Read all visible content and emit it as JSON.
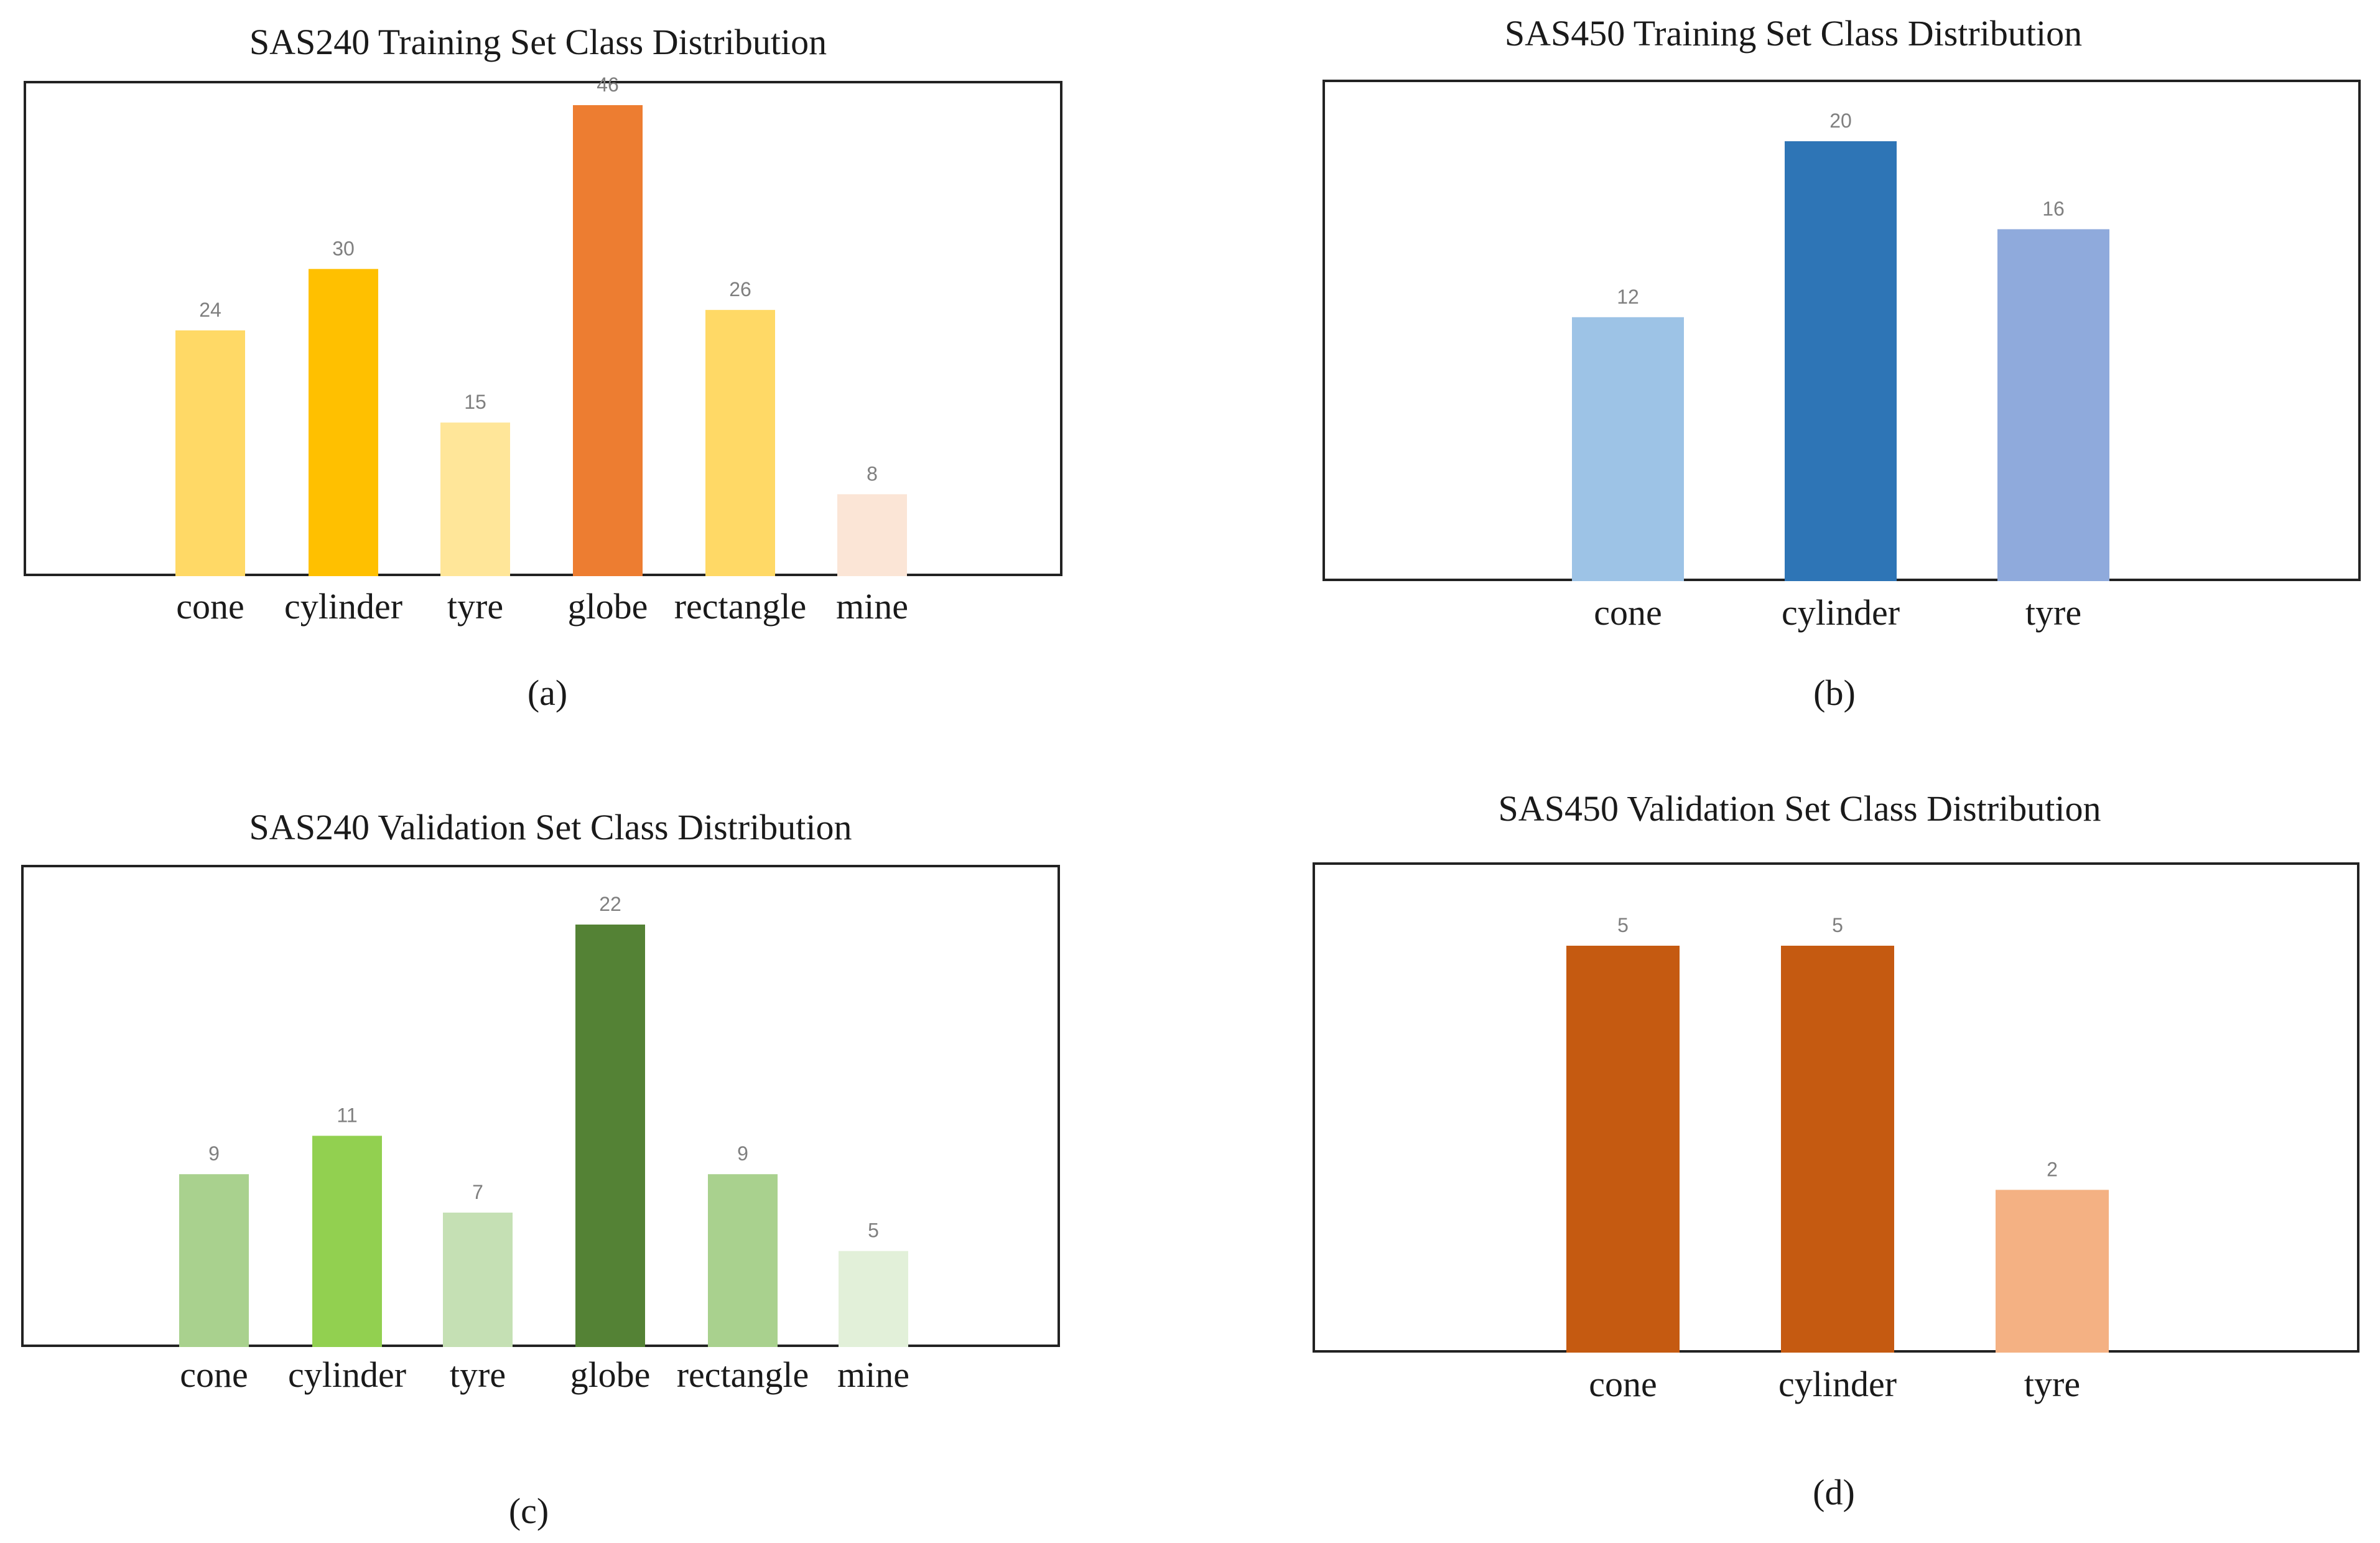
{
  "chart_data": [
    {
      "id": "a",
      "type": "bar",
      "title": "SAS240 Training Set Class Distribution",
      "caption": "(a)",
      "categories": [
        "cone",
        "cylinder",
        "tyre",
        "globe",
        "rectangle",
        "mine"
      ],
      "values": [
        24,
        30,
        15,
        46,
        26,
        8
      ],
      "colors": [
        "#FFD966",
        "#FFC000",
        "#FFE699",
        "#ED7D31",
        "#FFD966",
        "#FBE5D6"
      ],
      "xlabel": "",
      "ylabel": "",
      "ylim": [
        0,
        50
      ],
      "grid": false
    },
    {
      "id": "b",
      "type": "bar",
      "title": "SAS450 Training Set Class Distribution",
      "caption": "(b)",
      "categories": [
        "cone",
        "cylinder",
        "tyre"
      ],
      "values": [
        12,
        20,
        16
      ],
      "colors": [
        "#9DC3E6",
        "#2E75B6",
        "#8FAADC"
      ],
      "xlabel": "",
      "ylabel": "",
      "ylim": [
        0,
        22
      ],
      "grid": false
    },
    {
      "id": "c",
      "type": "bar",
      "title": "SAS240 Validation Set Class Distribution",
      "caption": "(c)",
      "categories": [
        "cone",
        "cylinder",
        "tyre",
        "globe",
        "rectangle",
        "mine"
      ],
      "values": [
        9,
        11,
        7,
        22,
        9,
        5
      ],
      "colors": [
        "#A9D18E",
        "#92D050",
        "#C5E0B4",
        "#548235",
        "#A9D18E",
        "#E2F0D9"
      ],
      "xlabel": "",
      "ylabel": "",
      "ylim": [
        0,
        24
      ],
      "grid": false
    },
    {
      "id": "d",
      "type": "bar",
      "title": "SAS450 Validation Set Class Distribution",
      "caption": "(d)",
      "categories": [
        "cone",
        "cylinder",
        "tyre"
      ],
      "values": [
        5,
        5,
        2
      ],
      "colors": [
        "#C55A11",
        "#C55A11",
        "#F4B183"
      ],
      "xlabel": "",
      "ylabel": "",
      "ylim": [
        0,
        6
      ],
      "grid": false
    }
  ]
}
